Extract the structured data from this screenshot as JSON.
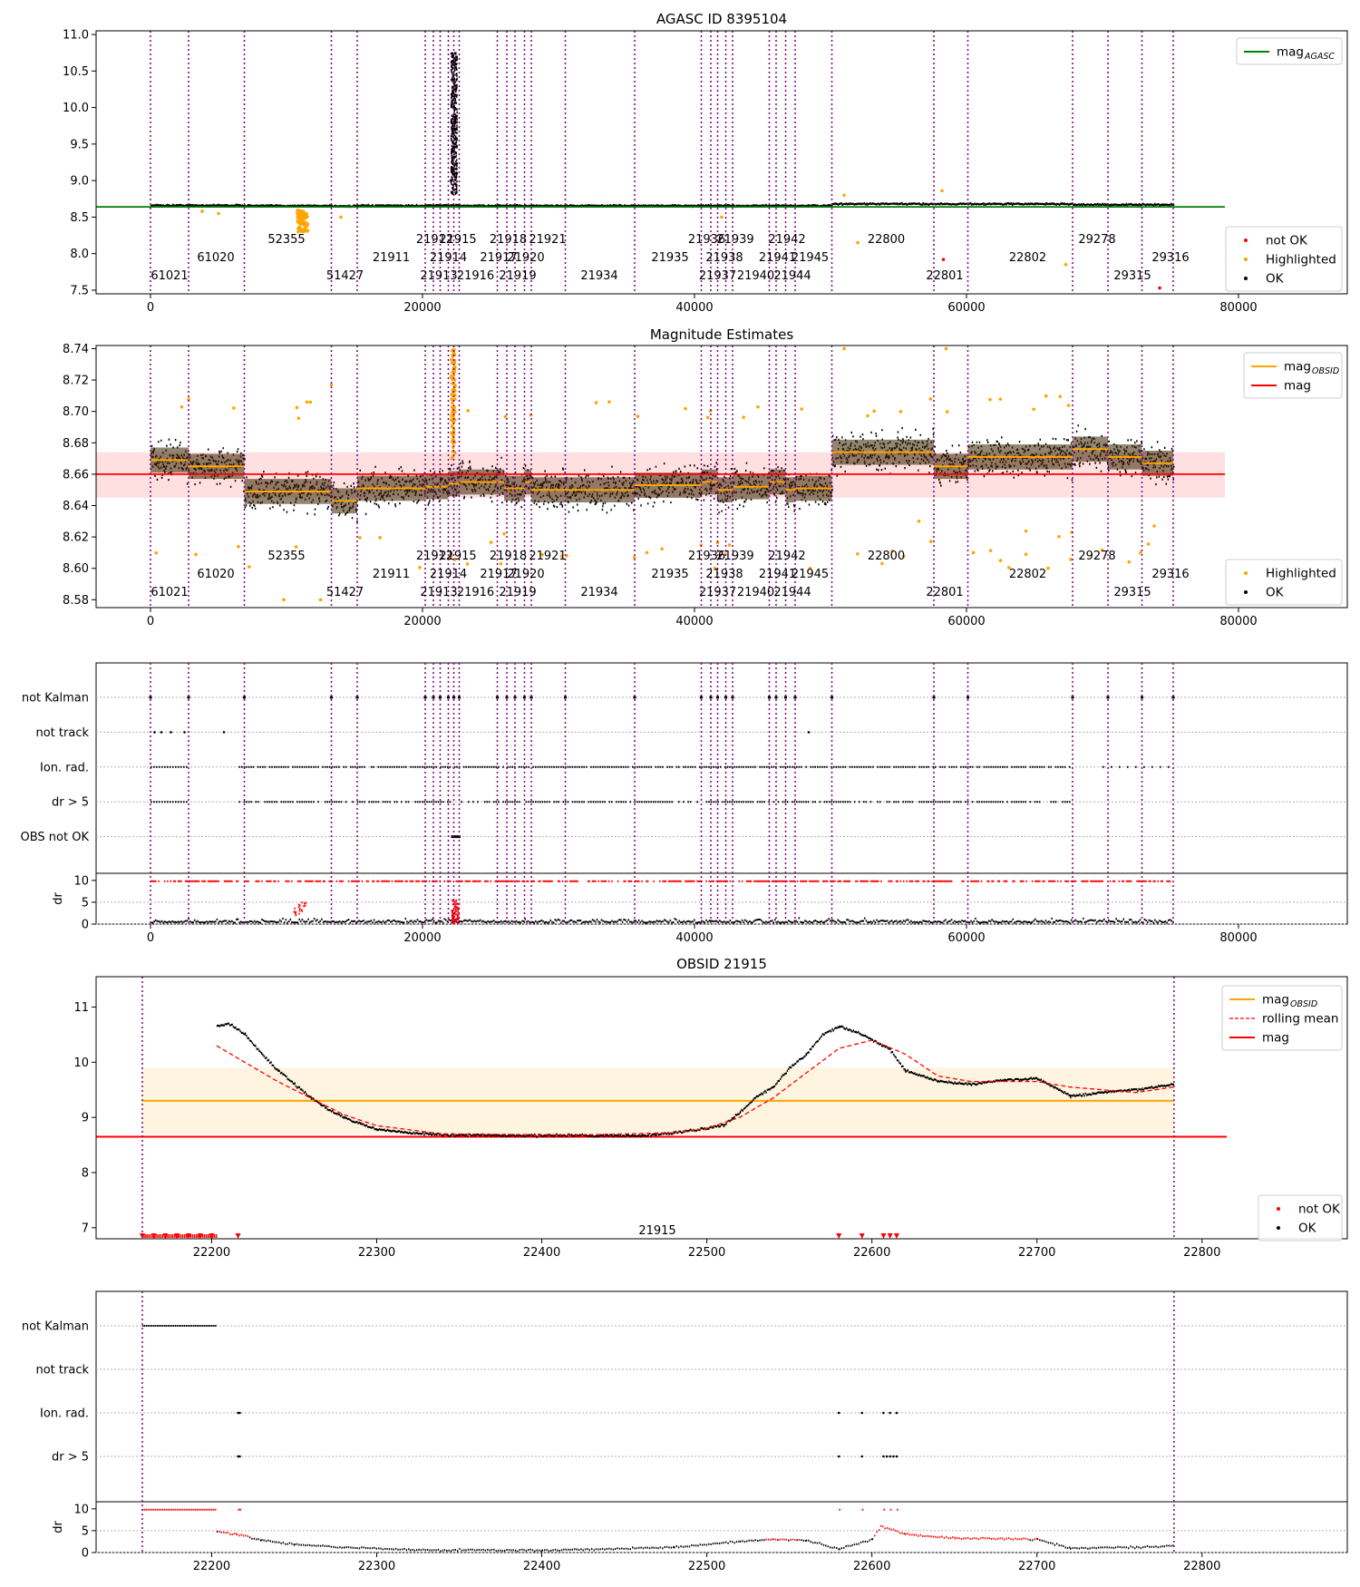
{
  "colors": {
    "ok": "#000000",
    "not_ok": "#ff0000",
    "highlighted": "#ffa500",
    "agasc": "#008000",
    "obs_line": "#800080",
    "mag_obsid": "#ffa500",
    "mag": "#ff0000"
  },
  "chart_data": [
    {
      "type": "scatter",
      "id": "agasc_overview",
      "title": "AGASC ID 8395104",
      "xlim": [
        -4000,
        88000
      ],
      "ylim": [
        7.45,
        11.05
      ],
      "xticks": [
        "0",
        "20000",
        "40000",
        "60000",
        "80000"
      ],
      "yticks": [
        "7.5",
        "8.0",
        "8.5",
        "9.0",
        "9.5",
        "10.0",
        "10.5",
        "11.0"
      ],
      "reference_lines": [
        {
          "name": "mag",
          "sub": "AGASC",
          "y": 8.64,
          "x": [
            -4000,
            79000
          ]
        }
      ],
      "legend_top": [
        {
          "label": "mag",
          "sub": "AGASC",
          "kind": "line",
          "color": "#008000"
        }
      ],
      "legend_bottom": [
        {
          "label": "not OK",
          "kind": "point",
          "color": "#ff0000"
        },
        {
          "label": "Highlighted",
          "kind": "point",
          "color": "#ffa500"
        },
        {
          "label": "OK",
          "kind": "point",
          "color": "#000000"
        }
      ],
      "series": [
        {
          "name": "OK",
          "segments": [
            [
              0,
              2800,
              8.66
            ],
            [
              2800,
              6900,
              8.66
            ],
            [
              6900,
              13300,
              8.655
            ],
            [
              13300,
              15200,
              8.65
            ],
            [
              15200,
              20200,
              8.655
            ],
            [
              20200,
              22700,
              8.66
            ],
            [
              22700,
              50100,
              8.655
            ],
            [
              50100,
              57500,
              8.68
            ],
            [
              57500,
              67800,
              8.68
            ],
            [
              67800,
              75200,
              8.67
            ]
          ],
          "spread": 0.03
        },
        {
          "name": "OK",
          "points": [
            [
              22100,
              9.0
            ],
            [
              22150,
              9.8
            ],
            [
              22200,
              10.7
            ],
            [
              22250,
              10.2
            ],
            [
              22300,
              9.4
            ],
            [
              22350,
              10.6
            ],
            [
              22400,
              9.7
            ],
            [
              22500,
              9.1
            ]
          ]
        },
        {
          "name": "Highlighted",
          "points": [
            [
              10800,
              8.55
            ],
            [
              11100,
              8.45
            ],
            [
              11000,
              8.35
            ],
            [
              11200,
              8.3
            ],
            [
              11400,
              8.5
            ],
            [
              5000,
              8.55
            ],
            [
              3800,
              8.58
            ],
            [
              51000,
              8.8
            ],
            [
              58200,
              8.86
            ],
            [
              52000,
              8.15
            ],
            [
              67300,
              7.85
            ],
            [
              47800,
              7.75
            ],
            [
              42000,
              8.5
            ],
            [
              14000,
              8.5
            ]
          ]
        },
        {
          "name": "not OK",
          "points": [
            [
              58300,
              7.92
            ],
            [
              74200,
              7.53
            ]
          ]
        }
      ],
      "obsid_labels": [
        {
          "text": "61021",
          "x": 1400,
          "row": 2
        },
        {
          "text": "61020",
          "x": 4800,
          "row": 1
        },
        {
          "text": "52355",
          "x": 10000,
          "row": 0
        },
        {
          "text": "51427",
          "x": 14300,
          "row": 2
        },
        {
          "text": "21911",
          "x": 17700,
          "row": 1
        },
        {
          "text": "21912",
          "x": 20900,
          "row": 0
        },
        {
          "text": "21915",
          "x": 22600,
          "row": 0
        },
        {
          "text": "21914",
          "x": 21900,
          "row": 1
        },
        {
          "text": "21913",
          "x": 21200,
          "row": 2
        },
        {
          "text": "21916",
          "x": 23900,
          "row": 2
        },
        {
          "text": "21918",
          "x": 26300,
          "row": 0
        },
        {
          "text": "21917",
          "x": 25600,
          "row": 1
        },
        {
          "text": "21920",
          "x": 27600,
          "row": 1
        },
        {
          "text": "21921",
          "x": 29200,
          "row": 0
        },
        {
          "text": "21919",
          "x": 27000,
          "row": 2
        },
        {
          "text": "21934",
          "x": 33000,
          "row": 2
        },
        {
          "text": "21935",
          "x": 38200,
          "row": 1
        },
        {
          "text": "21936",
          "x": 40900,
          "row": 0
        },
        {
          "text": "21938",
          "x": 42200,
          "row": 1
        },
        {
          "text": "21939",
          "x": 43000,
          "row": 0
        },
        {
          "text": "21937",
          "x": 41700,
          "row": 2
        },
        {
          "text": "21940",
          "x": 44500,
          "row": 2
        },
        {
          "text": "21942",
          "x": 46800,
          "row": 0
        },
        {
          "text": "21941",
          "x": 46100,
          "row": 1
        },
        {
          "text": "21945",
          "x": 48500,
          "row": 1
        },
        {
          "text": "21944",
          "x": 47200,
          "row": 2
        },
        {
          "text": "22800",
          "x": 54100,
          "row": 0
        },
        {
          "text": "22801",
          "x": 58400,
          "row": 2
        },
        {
          "text": "22802",
          "x": 64500,
          "row": 1
        },
        {
          "text": "29278",
          "x": 69600,
          "row": 0
        },
        {
          "text": "29315",
          "x": 72200,
          "row": 2
        },
        {
          "text": "29316",
          "x": 75000,
          "row": 1
        }
      ],
      "obs_lines": [
        0,
        2800,
        6900,
        13300,
        15200,
        20200,
        20800,
        21300,
        21900,
        22300,
        22700,
        25500,
        26200,
        26800,
        27500,
        28000,
        30500,
        35600,
        40500,
        41200,
        41700,
        42300,
        42800,
        45500,
        46000,
        46700,
        47400,
        50100,
        57600,
        60100,
        67800,
        70400,
        72900,
        75200
      ]
    },
    {
      "type": "scatter",
      "id": "magnitude_estimates",
      "title": "Magnitude Estimates",
      "xlim": [
        -4000,
        88000
      ],
      "ylim": [
        8.575,
        8.742
      ],
      "xticks": [
        "0",
        "20000",
        "40000",
        "60000",
        "80000"
      ],
      "yticks": [
        "8.58",
        "8.60",
        "8.62",
        "8.64",
        "8.66",
        "8.68",
        "8.70",
        "8.72",
        "8.74"
      ],
      "reference_lines": [
        {
          "name": "mag",
          "y": 8.66,
          "band": [
            8.645,
            8.674
          ],
          "x": [
            -4000,
            79000
          ]
        }
      ],
      "legend_top": [
        {
          "label": "mag",
          "sub": "OBSID",
          "kind": "line",
          "color": "#ffa500"
        },
        {
          "label": "mag",
          "kind": "line",
          "color": "#ff0000"
        }
      ],
      "legend_bottom": [
        {
          "label": "Highlighted",
          "kind": "point",
          "color": "#ffa500"
        },
        {
          "label": "OK",
          "kind": "point",
          "color": "#000000"
        }
      ],
      "obsid_means": [
        [
          0,
          2800,
          8.669
        ],
        [
          2800,
          6900,
          8.665
        ],
        [
          6900,
          13300,
          8.649
        ],
        [
          13300,
          15200,
          8.643
        ],
        [
          15200,
          20200,
          8.651
        ],
        [
          20200,
          21900,
          8.652
        ],
        [
          21900,
          22700,
          8.654
        ],
        [
          22700,
          26000,
          8.655
        ],
        [
          26000,
          27500,
          8.651
        ],
        [
          27500,
          28000,
          8.655
        ],
        [
          28000,
          35600,
          8.65
        ],
        [
          35600,
          40500,
          8.653
        ],
        [
          40500,
          41700,
          8.655
        ],
        [
          41700,
          42800,
          8.65
        ],
        [
          42800,
          45500,
          8.652
        ],
        [
          45500,
          46700,
          8.655
        ],
        [
          46700,
          47400,
          8.65
        ],
        [
          47400,
          50100,
          8.651
        ],
        [
          50100,
          57600,
          8.674
        ],
        [
          57600,
          60100,
          8.665
        ],
        [
          60100,
          67800,
          8.671
        ],
        [
          67800,
          70400,
          8.676
        ],
        [
          70400,
          72900,
          8.671
        ],
        [
          72900,
          75200,
          8.667
        ]
      ],
      "highlighted_points": [
        [
          11500,
          8.706
        ],
        [
          13300,
          8.717
        ],
        [
          9800,
          8.58
        ],
        [
          12500,
          8.58
        ],
        [
          26000,
          8.622
        ],
        [
          36500,
          8.61
        ],
        [
          41500,
          8.6
        ],
        [
          48500,
          8.6
        ],
        [
          56500,
          8.63
        ],
        [
          60500,
          8.61
        ],
        [
          62500,
          8.605
        ],
        [
          66000,
          8.6
        ],
        [
          72800,
          8.61
        ],
        [
          73800,
          8.627
        ],
        [
          51000,
          8.74
        ],
        [
          58500,
          8.74
        ]
      ],
      "obs_lines": [
        0,
        2800,
        6900,
        13300,
        15200,
        20200,
        20800,
        21300,
        21900,
        22300,
        22700,
        25500,
        26200,
        26800,
        27500,
        28000,
        30500,
        35600,
        40500,
        41200,
        41700,
        42300,
        42800,
        45500,
        46000,
        46700,
        47400,
        50100,
        57600,
        60100,
        67800,
        70400,
        72900,
        75200
      ]
    },
    {
      "type": "scatter",
      "id": "flags_overview",
      "xlim": [
        -4000,
        88000
      ],
      "xticks": [
        "0",
        "20000",
        "40000",
        "60000",
        "80000"
      ],
      "flag_rows": [
        "not Kalman",
        "not track",
        "Ion. rad.",
        "dr > 5",
        "OBS not OK"
      ],
      "dr_ylabel": "dr",
      "dr_ticks": [
        "0",
        "5",
        "10"
      ],
      "obs_lines": [
        0,
        2800,
        6900,
        13300,
        15200,
        20200,
        20800,
        21300,
        21900,
        22300,
        22700,
        25500,
        26200,
        26800,
        27500,
        28000,
        30500,
        35600,
        40500,
        41200,
        41700,
        42300,
        42800,
        45500,
        46000,
        46700,
        47400,
        50100,
        57600,
        60100,
        67800,
        70400,
        72900,
        75200
      ]
    },
    {
      "type": "line",
      "id": "obsid_21915",
      "title": "OBSID 21915",
      "xlim": [
        22130,
        22888
      ],
      "ylim": [
        6.8,
        11.55
      ],
      "xticks": [
        "22200",
        "22300",
        "22400",
        "22500",
        "22600",
        "22700",
        "22800"
      ],
      "yticks": [
        "7",
        "8",
        "9",
        "10",
        "11"
      ],
      "obsid_label": "21915",
      "mag_obsid": {
        "y": 9.3,
        "band": [
          8.7,
          9.9
        ],
        "x": [
          22158,
          22783
        ]
      },
      "mag": {
        "y": 8.65,
        "x": [
          22130,
          22815
        ]
      },
      "legend_top": [
        {
          "label": "mag",
          "sub": "OBSID",
          "kind": "line",
          "color": "#ffa500"
        },
        {
          "label": "rolling mean",
          "kind": "dash",
          "color": "#ff0000"
        },
        {
          "label": "mag",
          "kind": "line",
          "color": "#ff0000"
        }
      ],
      "legend_bottom": [
        {
          "label": "not OK",
          "kind": "point",
          "color": "#ff0000"
        },
        {
          "label": "OK",
          "kind": "point",
          "color": "#000000"
        }
      ],
      "curve": [
        [
          22203,
          10.65
        ],
        [
          22210,
          10.7
        ],
        [
          22220,
          10.5
        ],
        [
          22230,
          10.15
        ],
        [
          22240,
          9.85
        ],
        [
          22250,
          9.6
        ],
        [
          22260,
          9.35
        ],
        [
          22270,
          9.15
        ],
        [
          22280,
          9.0
        ],
        [
          22290,
          8.88
        ],
        [
          22300,
          8.78
        ],
        [
          22320,
          8.72
        ],
        [
          22340,
          8.68
        ],
        [
          22380,
          8.67
        ],
        [
          22420,
          8.67
        ],
        [
          22460,
          8.67
        ],
        [
          22480,
          8.72
        ],
        [
          22500,
          8.8
        ],
        [
          22510,
          8.86
        ],
        [
          22520,
          9.1
        ],
        [
          22530,
          9.38
        ],
        [
          22540,
          9.55
        ],
        [
          22550,
          9.9
        ],
        [
          22560,
          10.15
        ],
        [
          22570,
          10.5
        ],
        [
          22580,
          10.65
        ],
        [
          22590,
          10.55
        ],
        [
          22600,
          10.4
        ],
        [
          22610,
          10.25
        ],
        [
          22620,
          9.85
        ],
        [
          22640,
          9.65
        ],
        [
          22660,
          9.6
        ],
        [
          22680,
          9.68
        ],
        [
          22700,
          9.7
        ],
        [
          22710,
          9.55
        ],
        [
          22720,
          9.38
        ],
        [
          22740,
          9.45
        ],
        [
          22760,
          9.5
        ],
        [
          22783,
          9.6
        ]
      ],
      "rolling_mean": [
        [
          22203,
          10.3
        ],
        [
          22220,
          10.0
        ],
        [
          22240,
          9.65
        ],
        [
          22260,
          9.35
        ],
        [
          22280,
          9.05
        ],
        [
          22300,
          8.85
        ],
        [
          22340,
          8.7
        ],
        [
          22420,
          8.68
        ],
        [
          22480,
          8.72
        ],
        [
          22500,
          8.8
        ],
        [
          22520,
          9.0
        ],
        [
          22540,
          9.35
        ],
        [
          22560,
          9.8
        ],
        [
          22580,
          10.25
        ],
        [
          22600,
          10.4
        ],
        [
          22620,
          10.15
        ],
        [
          22640,
          9.75
        ],
        [
          22660,
          9.65
        ],
        [
          22700,
          9.65
        ],
        [
          22720,
          9.55
        ],
        [
          22760,
          9.45
        ],
        [
          22783,
          9.55
        ]
      ],
      "not_ok_x": [
        22158,
        22165,
        22172,
        22179,
        22186,
        22193,
        22200,
        22216,
        22580,
        22594,
        22607,
        22611,
        22615
      ],
      "obs_lines": [
        22158,
        22783
      ]
    },
    {
      "type": "scatter",
      "id": "flags_21915",
      "xlim": [
        22130,
        22888
      ],
      "xticks": [
        "22200",
        "22300",
        "22400",
        "22500",
        "22600",
        "22700",
        "22800"
      ],
      "flag_rows": [
        "not Kalman",
        "not track",
        "Ion. rad.",
        "dr > 5"
      ],
      "dr_ylabel": "dr",
      "dr_ticks": [
        "0",
        "5",
        "10"
      ],
      "obs_lines": [
        22158,
        22783
      ]
    }
  ]
}
